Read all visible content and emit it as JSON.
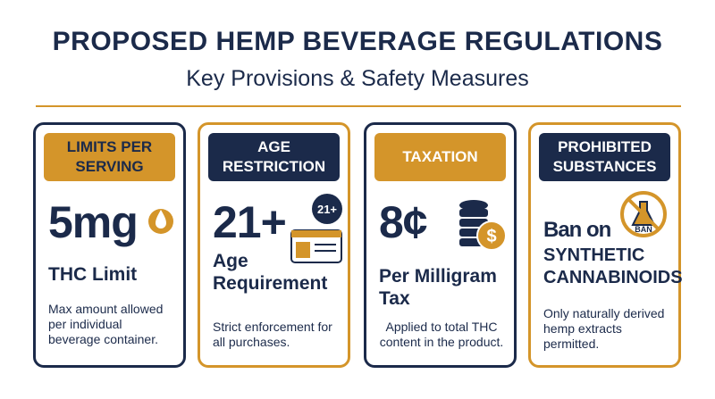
{
  "header": {
    "title": "PROPOSED HEMP BEVERAGE REGULATIONS",
    "subtitle": "Key Provisions & Safety Measures"
  },
  "cards": [
    {
      "label": "LIMITS PER SERVING",
      "headline": "5mg",
      "subhead": "THC Limit",
      "description": "Max amount allowed per individual beverage container."
    },
    {
      "label": "AGE RESTRICTION",
      "headline": "21+",
      "icon_text": "21+",
      "subhead": "Age Requirement",
      "description": "Strict enforcement for all purchases."
    },
    {
      "label": "TAXATION",
      "headline": "8¢",
      "icon_text": "$",
      "subhead": "Per Milligram Tax",
      "description": "Applied to total THC content in the product."
    },
    {
      "label": "PROHIBITED SUBSTANCES",
      "headline": "Ban on",
      "icon_text": "BAN",
      "subhead": "SYNTHETIC CANNABINOIDS",
      "description": "Only naturally derived hemp extracts permitted."
    }
  ]
}
